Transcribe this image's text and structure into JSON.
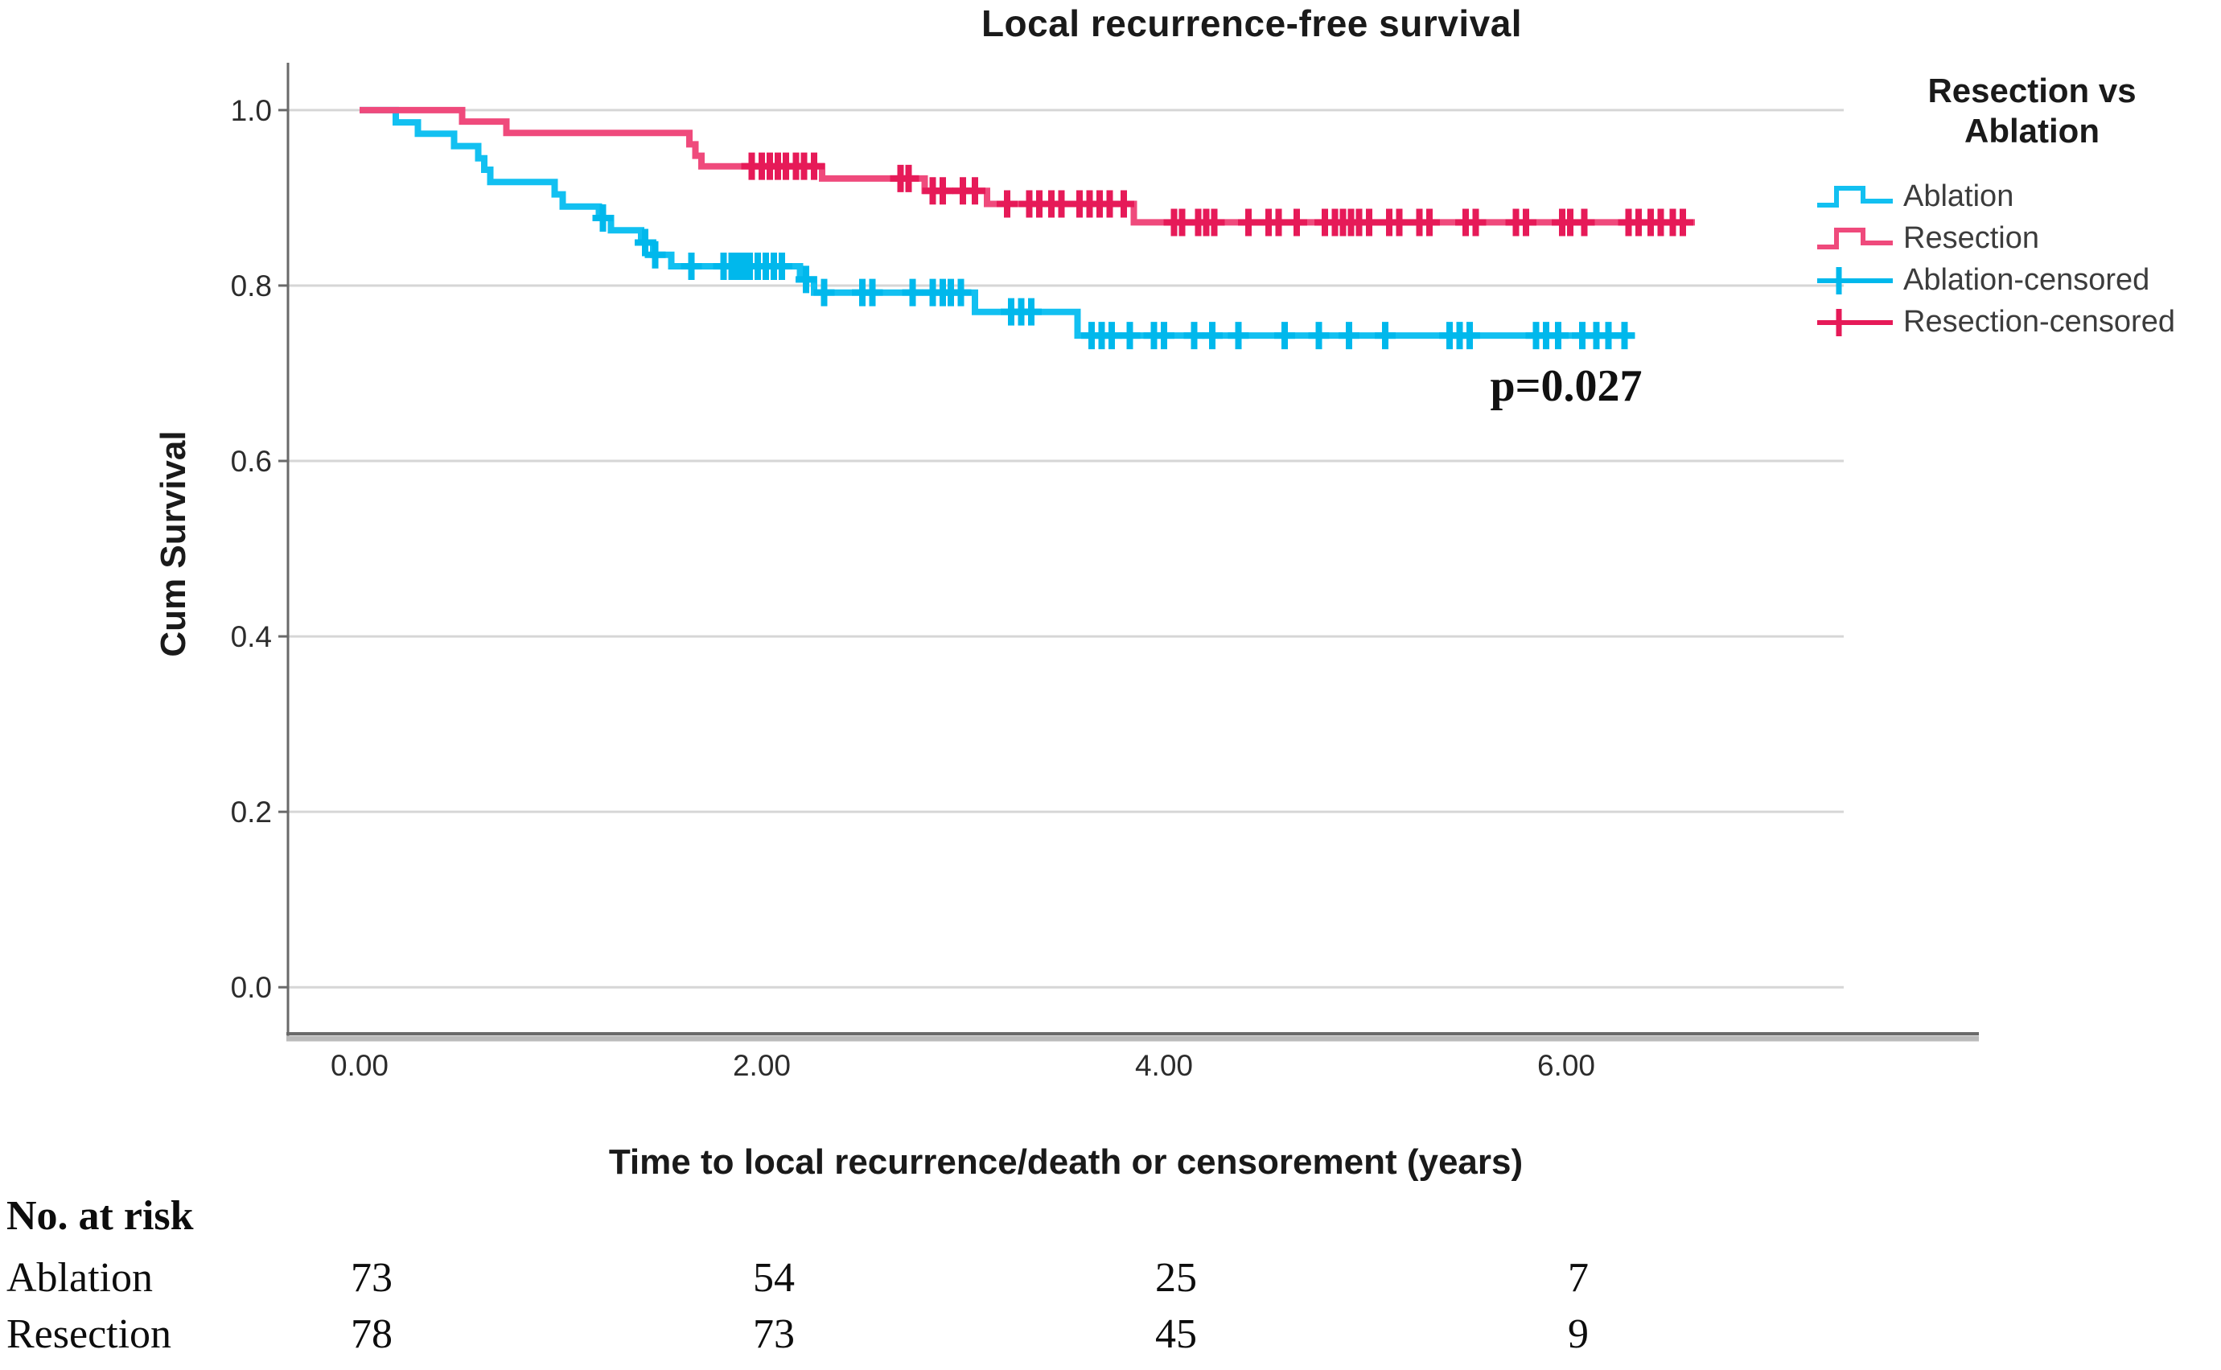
{
  "legend": {
    "title": "Resection vs Ablation",
    "title_lines": [
      "Resection vs",
      "Ablation"
    ],
    "items": [
      {
        "label": "Ablation",
        "glyph": "step-line",
        "color": "#12c0f1"
      },
      {
        "label": "Resection",
        "glyph": "step-line",
        "color": "#ef4a7c"
      },
      {
        "label": "Ablation-censored",
        "glyph": "plus",
        "color": "#00b8ec"
      },
      {
        "label": "Resection-censored",
        "glyph": "plus",
        "color": "#e61a58"
      }
    ]
  },
  "risk_table": {
    "header": "No. at risk",
    "time_points": [
      0,
      2,
      4,
      6
    ],
    "rows": [
      {
        "label": "Ablation",
        "counts": [
          "73",
          "54",
          "25",
          "7"
        ]
      },
      {
        "label": "Resection",
        "counts": [
          "78",
          "73",
          "45",
          "9"
        ]
      }
    ]
  },
  "colors": {
    "gridline": "#d6d6d6",
    "axis": "#6a6a6a",
    "axis_band": "#bbbbbb",
    "tick_text": "#2c2c2c"
  },
  "chart_data": {
    "type": "line",
    "subtype": "kaplan-meier-step-survival",
    "title": "Local recurrence-free survival",
    "xlabel": "Time to local recurrence/death or censorement (years)",
    "ylabel": "Cum Survival",
    "xlim": [
      -0.356,
      7.38
    ],
    "ylim": [
      -0.053,
      1.054
    ],
    "grid": "horizontal",
    "legend_position": "right",
    "annotation": {
      "text": "p=0.027",
      "x": 6.0,
      "y": 0.685
    },
    "x_ticks": {
      "values": [
        0,
        2,
        4,
        6
      ],
      "labels": [
        "0.00",
        "2.00",
        "4.00",
        "6.00"
      ]
    },
    "y_ticks": {
      "values": [
        1.0,
        0.8,
        0.6,
        0.4,
        0.2,
        0.0
      ],
      "labels": [
        "1.0",
        "0.8",
        "0.6",
        "0.4",
        "0.2",
        "0.0"
      ]
    },
    "series": [
      {
        "name": "Ablation",
        "color": "#12c0f1",
        "censor_color": "#00b8ec",
        "end_time": 6.34,
        "steps": [
          [
            0,
            1.0
          ],
          [
            0.18,
            0.986
          ],
          [
            0.29,
            0.973
          ],
          [
            0.47,
            0.959
          ],
          [
            0.59,
            0.945
          ],
          [
            0.62,
            0.932
          ],
          [
            0.65,
            0.918
          ],
          [
            0.97,
            0.904
          ],
          [
            1.01,
            0.89
          ],
          [
            1.19,
            0.877
          ],
          [
            1.25,
            0.863
          ],
          [
            1.4,
            0.849
          ],
          [
            1.46,
            0.835
          ],
          [
            1.55,
            0.822
          ],
          [
            2.19,
            0.807
          ],
          [
            2.26,
            0.792
          ],
          [
            3.06,
            0.77
          ],
          [
            3.57,
            0.743
          ]
        ],
        "censored": [
          [
            1.21,
            0.877
          ],
          [
            1.42,
            0.849
          ],
          [
            1.47,
            0.835
          ],
          [
            1.65,
            0.822
          ],
          [
            1.81,
            0.822
          ],
          [
            1.85,
            0.822
          ],
          [
            1.88,
            0.822
          ],
          [
            1.91,
            0.822
          ],
          [
            1.94,
            0.822
          ],
          [
            1.98,
            0.822
          ],
          [
            2.02,
            0.822
          ],
          [
            2.06,
            0.822
          ],
          [
            2.1,
            0.822
          ],
          [
            2.22,
            0.807
          ],
          [
            2.31,
            0.792
          ],
          [
            2.5,
            0.792
          ],
          [
            2.55,
            0.792
          ],
          [
            2.75,
            0.792
          ],
          [
            2.85,
            0.792
          ],
          [
            2.9,
            0.792
          ],
          [
            2.94,
            0.792
          ],
          [
            2.99,
            0.792
          ],
          [
            3.24,
            0.77
          ],
          [
            3.29,
            0.77
          ],
          [
            3.34,
            0.77
          ],
          [
            3.64,
            0.743
          ],
          [
            3.69,
            0.743
          ],
          [
            3.74,
            0.743
          ],
          [
            3.83,
            0.743
          ],
          [
            3.95,
            0.743
          ],
          [
            4.0,
            0.743
          ],
          [
            4.15,
            0.743
          ],
          [
            4.24,
            0.743
          ],
          [
            4.37,
            0.743
          ],
          [
            4.6,
            0.743
          ],
          [
            4.77,
            0.743
          ],
          [
            4.92,
            0.743
          ],
          [
            5.1,
            0.743
          ],
          [
            5.42,
            0.743
          ],
          [
            5.47,
            0.743
          ],
          [
            5.52,
            0.743
          ],
          [
            5.85,
            0.743
          ],
          [
            5.9,
            0.743
          ],
          [
            5.96,
            0.743
          ],
          [
            6.08,
            0.743
          ],
          [
            6.15,
            0.743
          ],
          [
            6.21,
            0.743
          ],
          [
            6.29,
            0.743
          ]
        ]
      },
      {
        "name": "Resection",
        "color": "#ef4a7c",
        "censor_color": "#e61a58",
        "end_time": 6.64,
        "steps": [
          [
            0,
            1.0
          ],
          [
            0.51,
            0.987
          ],
          [
            0.73,
            0.974
          ],
          [
            1.64,
            0.961
          ],
          [
            1.67,
            0.948
          ],
          [
            1.7,
            0.936
          ],
          [
            2.3,
            0.922
          ],
          [
            2.81,
            0.908
          ],
          [
            3.12,
            0.893
          ],
          [
            3.85,
            0.872
          ]
        ],
        "censored": [
          [
            1.95,
            0.936
          ],
          [
            2.0,
            0.936
          ],
          [
            2.04,
            0.936
          ],
          [
            2.08,
            0.936
          ],
          [
            2.12,
            0.936
          ],
          [
            2.17,
            0.936
          ],
          [
            2.21,
            0.936
          ],
          [
            2.26,
            0.936
          ],
          [
            2.69,
            0.922
          ],
          [
            2.73,
            0.922
          ],
          [
            2.85,
            0.908
          ],
          [
            2.9,
            0.908
          ],
          [
            3.0,
            0.908
          ],
          [
            3.06,
            0.908
          ],
          [
            3.22,
            0.893
          ],
          [
            3.33,
            0.893
          ],
          [
            3.38,
            0.893
          ],
          [
            3.44,
            0.893
          ],
          [
            3.49,
            0.893
          ],
          [
            3.58,
            0.893
          ],
          [
            3.63,
            0.893
          ],
          [
            3.68,
            0.893
          ],
          [
            3.73,
            0.893
          ],
          [
            3.8,
            0.893
          ],
          [
            4.05,
            0.872
          ],
          [
            4.09,
            0.872
          ],
          [
            4.17,
            0.872
          ],
          [
            4.21,
            0.872
          ],
          [
            4.25,
            0.872
          ],
          [
            4.42,
            0.872
          ],
          [
            4.52,
            0.872
          ],
          [
            4.57,
            0.872
          ],
          [
            4.66,
            0.872
          ],
          [
            4.8,
            0.872
          ],
          [
            4.85,
            0.872
          ],
          [
            4.89,
            0.872
          ],
          [
            4.93,
            0.872
          ],
          [
            4.97,
            0.872
          ],
          [
            5.02,
            0.872
          ],
          [
            5.12,
            0.872
          ],
          [
            5.17,
            0.872
          ],
          [
            5.27,
            0.872
          ],
          [
            5.32,
            0.872
          ],
          [
            5.5,
            0.872
          ],
          [
            5.55,
            0.872
          ],
          [
            5.75,
            0.872
          ],
          [
            5.8,
            0.872
          ],
          [
            5.98,
            0.872
          ],
          [
            6.02,
            0.872
          ],
          [
            6.09,
            0.872
          ],
          [
            6.31,
            0.872
          ],
          [
            6.36,
            0.872
          ],
          [
            6.42,
            0.872
          ],
          [
            6.47,
            0.872
          ],
          [
            6.53,
            0.872
          ],
          [
            6.58,
            0.872
          ]
        ]
      }
    ]
  }
}
